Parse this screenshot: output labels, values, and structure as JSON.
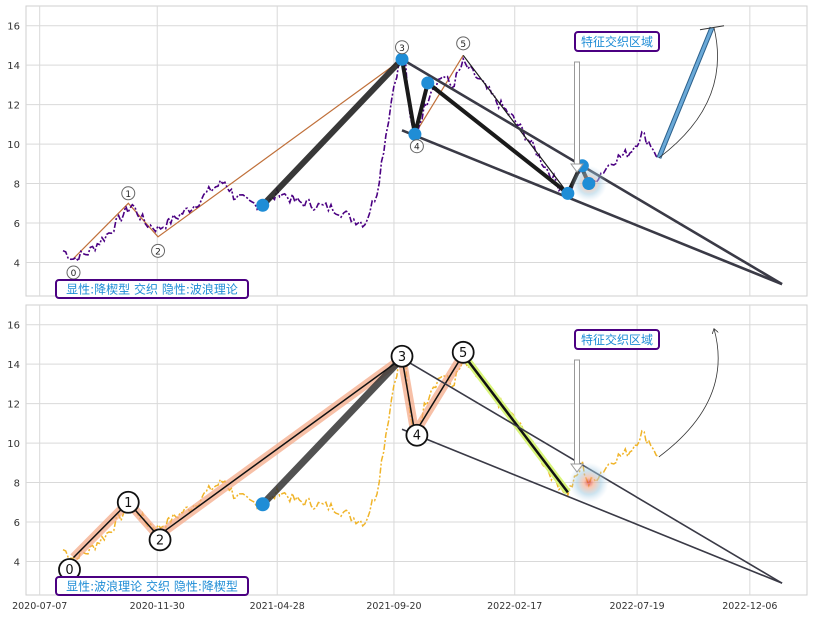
{
  "chart_data": [
    {
      "type": "line",
      "panel": "top",
      "ylim": [
        2.3,
        17
      ],
      "yticks": [
        4,
        6,
        8,
        10,
        12,
        14,
        16
      ],
      "legend_text": "显性:降楔型 交织 隐性:波浪理论",
      "region_label": "特征交织区域",
      "price_series": [
        [
          "2020-08-05",
          4.6
        ],
        [
          "2020-08-18",
          4.2
        ],
        [
          "2020-09-05",
          4.5
        ],
        [
          "2020-10-01",
          5.5
        ],
        [
          "2020-10-22",
          6.6
        ],
        [
          "2020-10-30",
          6.9
        ],
        [
          "2020-11-15",
          6.0
        ],
        [
          "2020-12-01",
          5.7
        ],
        [
          "2020-12-20",
          6.2
        ],
        [
          "2021-01-15",
          6.9
        ],
        [
          "2021-02-05",
          7.7
        ],
        [
          "2021-02-22",
          8.1
        ],
        [
          "2021-03-05",
          7.4
        ],
        [
          "2021-03-25",
          7.0
        ],
        [
          "2021-04-15",
          6.9
        ],
        [
          "2021-05-01",
          7.6
        ],
        [
          "2021-05-20",
          7.1
        ],
        [
          "2021-06-15",
          6.9
        ],
        [
          "2021-07-10",
          6.7
        ],
        [
          "2021-08-01",
          6.2
        ],
        [
          "2021-08-15",
          6.0
        ],
        [
          "2021-08-30",
          7.6
        ],
        [
          "2021-09-10",
          10.5
        ],
        [
          "2021-09-20",
          13.0
        ],
        [
          "2021-09-27",
          14.3
        ],
        [
          "2021-10-04",
          14.3
        ],
        [
          "2021-10-10",
          11.2
        ],
        [
          "2021-10-16",
          10.3
        ],
        [
          "2021-10-25",
          11.5
        ],
        [
          "2021-11-05",
          12.8
        ],
        [
          "2021-11-20",
          13.5
        ],
        [
          "2021-12-01",
          12.9
        ],
        [
          "2021-12-15",
          14.1
        ],
        [
          "2022-01-05",
          13.2
        ],
        [
          "2022-01-25",
          12.2
        ],
        [
          "2022-02-15",
          11.3
        ],
        [
          "2022-03-05",
          10.3
        ],
        [
          "2022-03-25",
          9.0
        ],
        [
          "2022-04-10",
          8.0
        ],
        [
          "2022-04-24",
          7.5
        ],
        [
          "2022-05-05",
          8.3
        ],
        [
          "2022-05-12",
          8.9
        ],
        [
          "2022-05-20",
          7.9
        ],
        [
          "2022-06-01",
          8.4
        ],
        [
          "2022-06-20",
          9.2
        ],
        [
          "2022-07-10",
          9.6
        ],
        [
          "2022-07-25",
          10.5
        ],
        [
          "2022-08-05",
          10.0
        ],
        [
          "2022-08-15",
          9.3
        ]
      ],
      "wave_points": [
        {
          "label": "0",
          "date": "2020-08-18",
          "value": 4.2
        },
        {
          "label": "1",
          "date": "2020-10-25",
          "value": 7.0
        },
        {
          "label": "2",
          "date": "2020-12-01",
          "value": 5.3
        },
        {
          "label": "3",
          "date": "2021-09-30",
          "value": 14.3
        },
        {
          "label": "4",
          "date": "2021-10-16",
          "value": 10.5
        },
        {
          "label": "5",
          "date": "2021-12-15",
          "value": 14.5
        }
      ]
    },
    {
      "type": "line",
      "panel": "bottom",
      "ylim": [
        2.3,
        17
      ],
      "yticks": [
        4,
        6,
        8,
        10,
        12,
        14,
        16
      ],
      "xticks": [
        "2020-07-07",
        "2020-11-30",
        "2021-04-28",
        "2021-09-20",
        "2022-02-17",
        "2022-07-19",
        "2022-12-06"
      ],
      "legend_text": "显性:波浪理论 交织 隐性:降楔型",
      "region_label": "特征交织区域",
      "wave_points": [
        {
          "label": "0",
          "date": "2020-08-18",
          "value": 4.2
        },
        {
          "label": "1",
          "date": "2020-10-25",
          "value": 7.0
        },
        {
          "label": "2",
          "date": "2020-12-01",
          "value": 5.3
        },
        {
          "label": "3",
          "date": "2021-09-30",
          "value": 14.3
        },
        {
          "label": "4",
          "date": "2021-10-16",
          "value": 10.5
        },
        {
          "label": "5",
          "date": "2021-12-15",
          "value": 14.5
        }
      ]
    }
  ],
  "colors": {
    "price_top": "#4b0082",
    "price_bottom": "#f0b429",
    "marker": "#1f8dd6",
    "wedge": "#3a3a46",
    "wave_shadow": "#f4a582",
    "callout_border": "#4b0082",
    "callout_text": "#1f8dd6",
    "projection": "#6aa9d8"
  }
}
